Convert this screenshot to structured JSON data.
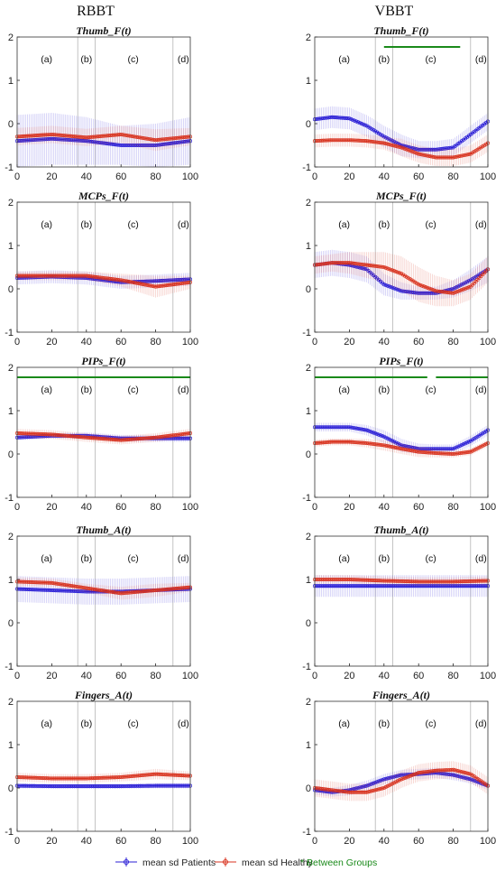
{
  "colors": {
    "patients": "#2b1fd6",
    "healthy": "#d8331f",
    "between": "#1a8a1a"
  },
  "columns": [
    "RBBT",
    "VBBT"
  ],
  "phase_labels": [
    "(a)",
    "(b)",
    "(c)",
    "(d)"
  ],
  "phase_boundaries": [
    35,
    45,
    90
  ],
  "x_ticks": [
    "0",
    "20",
    "40",
    "60",
    "80",
    "100"
  ],
  "y_ticks": [
    "2",
    "1",
    "0",
    "-1"
  ],
  "legend": {
    "patients": "mean sd Patients",
    "healthy": "mean sd Healthy",
    "between": "* Between Groups"
  },
  "chart_data": [
    {
      "type": "line",
      "id": "rbbt-thumb-f",
      "column": "RBBT",
      "title": "Thumb_F(t)",
      "xlim": [
        0,
        100
      ],
      "ylim": [
        -1,
        2
      ],
      "series": [
        {
          "name": "Patients",
          "x": [
            0,
            20,
            40,
            60,
            80,
            100
          ],
          "mean": [
            -0.4,
            -0.35,
            -0.4,
            -0.5,
            -0.5,
            -0.4
          ],
          "sd": [
            0.6,
            0.6,
            0.55,
            0.45,
            0.5,
            0.55
          ]
        },
        {
          "name": "Healthy",
          "x": [
            0,
            20,
            40,
            60,
            80,
            100
          ],
          "mean": [
            -0.3,
            -0.25,
            -0.32,
            -0.25,
            -0.38,
            -0.3
          ],
          "sd": [
            0.2,
            0.2,
            0.2,
            0.2,
            0.25,
            0.2
          ]
        }
      ],
      "significance": []
    },
    {
      "type": "line",
      "id": "vbbt-thumb-f",
      "column": "VBBT",
      "title": "Thumb_F(t)",
      "xlim": [
        0,
        100
      ],
      "ylim": [
        -1,
        2
      ],
      "series": [
        {
          "name": "Patients",
          "x": [
            0,
            10,
            20,
            30,
            40,
            50,
            60,
            70,
            80,
            90,
            100
          ],
          "mean": [
            0.1,
            0.15,
            0.12,
            -0.05,
            -0.3,
            -0.5,
            -0.6,
            -0.6,
            -0.55,
            -0.25,
            0.05
          ],
          "sd": [
            0.25,
            0.25,
            0.25,
            0.25,
            0.25,
            0.25,
            0.2,
            0.2,
            0.2,
            0.2,
            0.2
          ]
        },
        {
          "name": "Healthy",
          "x": [
            0,
            10,
            20,
            30,
            40,
            50,
            60,
            70,
            80,
            90,
            100
          ],
          "mean": [
            -0.4,
            -0.38,
            -0.38,
            -0.4,
            -0.45,
            -0.55,
            -0.7,
            -0.78,
            -0.78,
            -0.7,
            -0.45
          ],
          "sd": [
            0.15,
            0.15,
            0.15,
            0.15,
            0.15,
            0.2,
            0.2,
            0.2,
            0.2,
            0.2,
            0.2
          ]
        }
      ],
      "significance": [
        [
          40,
          84
        ]
      ]
    },
    {
      "type": "line",
      "id": "rbbt-mcps-f",
      "column": "RBBT",
      "title": "MCPs_F(t)",
      "xlim": [
        0,
        100
      ],
      "ylim": [
        -1,
        2
      ],
      "series": [
        {
          "name": "Patients",
          "x": [
            0,
            20,
            40,
            60,
            80,
            100
          ],
          "mean": [
            0.25,
            0.28,
            0.25,
            0.15,
            0.18,
            0.22
          ],
          "sd": [
            0.15,
            0.15,
            0.15,
            0.15,
            0.15,
            0.15
          ]
        },
        {
          "name": "Healthy",
          "x": [
            0,
            20,
            40,
            60,
            80,
            100
          ],
          "mean": [
            0.3,
            0.3,
            0.3,
            0.2,
            0.05,
            0.15
          ],
          "sd": [
            0.1,
            0.1,
            0.1,
            0.15,
            0.25,
            0.15
          ]
        }
      ],
      "significance": []
    },
    {
      "type": "line",
      "id": "vbbt-mcps-f",
      "column": "VBBT",
      "title": "MCPs_F(t)",
      "xlim": [
        0,
        100
      ],
      "ylim": [
        -1,
        2
      ],
      "series": [
        {
          "name": "Patients",
          "x": [
            0,
            10,
            20,
            30,
            40,
            50,
            60,
            70,
            80,
            90,
            100
          ],
          "mean": [
            0.55,
            0.6,
            0.55,
            0.45,
            0.1,
            -0.05,
            -0.1,
            -0.1,
            0.0,
            0.2,
            0.45
          ],
          "sd": [
            0.3,
            0.3,
            0.3,
            0.3,
            0.25,
            0.2,
            0.15,
            0.15,
            0.2,
            0.25,
            0.3
          ]
        },
        {
          "name": "Healthy",
          "x": [
            0,
            10,
            20,
            30,
            40,
            50,
            60,
            70,
            80,
            90,
            100
          ],
          "mean": [
            0.55,
            0.6,
            0.6,
            0.55,
            0.5,
            0.35,
            0.1,
            -0.05,
            -0.1,
            0.05,
            0.45
          ],
          "sd": [
            0.2,
            0.2,
            0.25,
            0.3,
            0.35,
            0.4,
            0.4,
            0.35,
            0.3,
            0.3,
            0.3
          ]
        }
      ],
      "significance": []
    },
    {
      "type": "line",
      "id": "rbbt-pips-f",
      "column": "RBBT",
      "title": "PIPs_F(t)",
      "xlim": [
        0,
        100
      ],
      "ylim": [
        -1,
        2
      ],
      "series": [
        {
          "name": "Patients",
          "x": [
            0,
            20,
            40,
            60,
            80,
            100
          ],
          "mean": [
            0.38,
            0.42,
            0.42,
            0.36,
            0.36,
            0.36
          ],
          "sd": [
            0.06,
            0.06,
            0.08,
            0.08,
            0.08,
            0.08
          ]
        },
        {
          "name": "Healthy",
          "x": [
            0,
            20,
            40,
            60,
            80,
            100
          ],
          "mean": [
            0.48,
            0.45,
            0.38,
            0.32,
            0.38,
            0.48
          ],
          "sd": [
            0.1,
            0.1,
            0.1,
            0.1,
            0.1,
            0.1
          ]
        }
      ],
      "significance": [
        [
          0,
          100
        ]
      ]
    },
    {
      "type": "line",
      "id": "vbbt-pips-f",
      "column": "VBBT",
      "title": "PIPs_F(t)",
      "xlim": [
        0,
        100
      ],
      "ylim": [
        -1,
        2
      ],
      "series": [
        {
          "name": "Patients",
          "x": [
            0,
            10,
            20,
            30,
            40,
            50,
            60,
            70,
            80,
            90,
            100
          ],
          "mean": [
            0.62,
            0.62,
            0.62,
            0.55,
            0.4,
            0.2,
            0.12,
            0.12,
            0.12,
            0.3,
            0.55
          ],
          "sd": [
            0.1,
            0.1,
            0.1,
            0.12,
            0.15,
            0.15,
            0.12,
            0.1,
            0.1,
            0.12,
            0.12
          ]
        },
        {
          "name": "Healthy",
          "x": [
            0,
            10,
            20,
            30,
            40,
            50,
            60,
            70,
            80,
            90,
            100
          ],
          "mean": [
            0.25,
            0.28,
            0.28,
            0.25,
            0.2,
            0.12,
            0.05,
            0.02,
            0.0,
            0.05,
            0.25
          ],
          "sd": [
            0.08,
            0.08,
            0.08,
            0.1,
            0.12,
            0.12,
            0.12,
            0.1,
            0.08,
            0.08,
            0.08
          ]
        }
      ],
      "significance": [
        [
          0,
          65
        ],
        [
          70,
          100
        ]
      ]
    },
    {
      "type": "line",
      "id": "rbbt-thumb-a",
      "column": "RBBT",
      "title": "Thumb_A(t)",
      "xlim": [
        0,
        100
      ],
      "ylim": [
        -1,
        2
      ],
      "series": [
        {
          "name": "Patients",
          "x": [
            0,
            20,
            40,
            60,
            80,
            100
          ],
          "mean": [
            0.78,
            0.75,
            0.72,
            0.72,
            0.75,
            0.78
          ],
          "sd": [
            0.3,
            0.3,
            0.3,
            0.3,
            0.3,
            0.3
          ]
        },
        {
          "name": "Healthy",
          "x": [
            0,
            20,
            40,
            60,
            80,
            100
          ],
          "mean": [
            0.95,
            0.92,
            0.8,
            0.68,
            0.75,
            0.82
          ],
          "sd": [
            0.1,
            0.1,
            0.1,
            0.15,
            0.15,
            0.1
          ]
        }
      ],
      "significance": []
    },
    {
      "type": "line",
      "id": "vbbt-thumb-a",
      "column": "VBBT",
      "title": "Thumb_A(t)",
      "xlim": [
        0,
        100
      ],
      "ylim": [
        -1,
        2
      ],
      "series": [
        {
          "name": "Patients",
          "x": [
            0,
            20,
            40,
            60,
            80,
            100
          ],
          "mean": [
            0.85,
            0.85,
            0.85,
            0.85,
            0.85,
            0.85
          ],
          "sd": [
            0.25,
            0.25,
            0.25,
            0.25,
            0.25,
            0.25
          ]
        },
        {
          "name": "Healthy",
          "x": [
            0,
            20,
            40,
            60,
            80,
            100
          ],
          "mean": [
            1.0,
            1.0,
            0.97,
            0.95,
            0.95,
            0.97
          ],
          "sd": [
            0.1,
            0.1,
            0.1,
            0.1,
            0.1,
            0.1
          ]
        }
      ],
      "significance": []
    },
    {
      "type": "line",
      "id": "rbbt-fingers-a",
      "column": "RBBT",
      "title": "Fingers_A(t)",
      "xlim": [
        0,
        100
      ],
      "ylim": [
        -1,
        2
      ],
      "series": [
        {
          "name": "Patients",
          "x": [
            0,
            20,
            40,
            60,
            80,
            100
          ],
          "mean": [
            0.05,
            0.04,
            0.04,
            0.04,
            0.05,
            0.05
          ],
          "sd": [
            0.06,
            0.06,
            0.06,
            0.06,
            0.06,
            0.06
          ]
        },
        {
          "name": "Healthy",
          "x": [
            0,
            20,
            40,
            60,
            80,
            100
          ],
          "mean": [
            0.25,
            0.22,
            0.22,
            0.25,
            0.32,
            0.28
          ],
          "sd": [
            0.1,
            0.1,
            0.1,
            0.1,
            0.12,
            0.1
          ]
        }
      ],
      "significance": []
    },
    {
      "type": "line",
      "id": "vbbt-fingers-a",
      "column": "VBBT",
      "title": "Fingers_A(t)",
      "xlim": [
        0,
        100
      ],
      "ylim": [
        -1,
        2
      ],
      "series": [
        {
          "name": "Patients",
          "x": [
            0,
            10,
            20,
            30,
            40,
            50,
            60,
            70,
            80,
            90,
            100
          ],
          "mean": [
            -0.05,
            -0.1,
            -0.05,
            0.05,
            0.2,
            0.3,
            0.32,
            0.35,
            0.3,
            0.2,
            0.05
          ],
          "sd": [
            0.1,
            0.1,
            0.12,
            0.12,
            0.12,
            0.12,
            0.12,
            0.12,
            0.12,
            0.1,
            0.1
          ]
        },
        {
          "name": "Healthy",
          "x": [
            0,
            10,
            20,
            30,
            40,
            50,
            60,
            70,
            80,
            90,
            100
          ],
          "mean": [
            0.0,
            -0.05,
            -0.1,
            -0.1,
            0.0,
            0.2,
            0.35,
            0.4,
            0.42,
            0.32,
            0.05
          ],
          "sd": [
            0.2,
            0.2,
            0.2,
            0.2,
            0.2,
            0.2,
            0.2,
            0.2,
            0.2,
            0.2,
            0.2
          ]
        }
      ],
      "significance": []
    }
  ]
}
